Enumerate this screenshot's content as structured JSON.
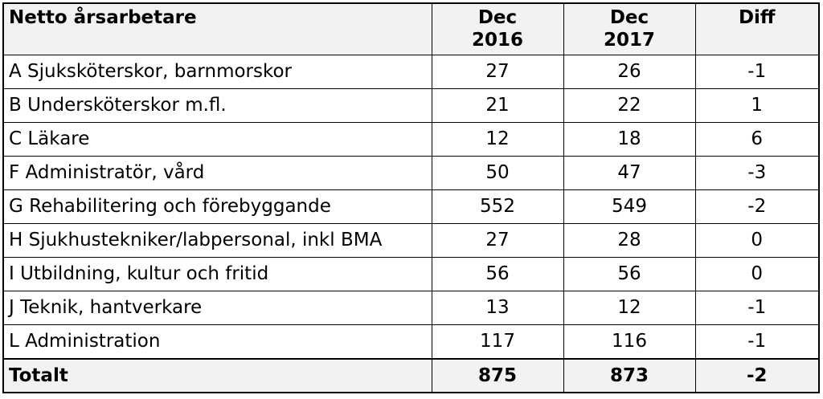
{
  "table": {
    "header": {
      "label": "Netto årsarbetare",
      "col1_line1": "Dec",
      "col1_line2": "2016",
      "col2_line1": "Dec",
      "col2_line2": "2017",
      "col3": "Diff"
    },
    "rows": [
      {
        "label": "A Sjuksköterskor, barnmorskor",
        "dec2016": "27",
        "dec2017": "26",
        "diff": "-1"
      },
      {
        "label": "B Undersköterskor m.fl.",
        "dec2016": "21",
        "dec2017": "22",
        "diff": "1"
      },
      {
        "label": "C Läkare",
        "dec2016": "12",
        "dec2017": "18",
        "diff": "6"
      },
      {
        "label": "F Administratör, vård",
        "dec2016": "50",
        "dec2017": "47",
        "diff": "-3"
      },
      {
        "label": "G Rehabilitering och förebyggande",
        "dec2016": "552",
        "dec2017": "549",
        "diff": "-2"
      },
      {
        "label": "H Sjukhustekniker/labpersonal, inkl BMA",
        "dec2016": "27",
        "dec2017": "28",
        "diff": "0"
      },
      {
        "label": "I Utbildning, kultur och fritid",
        "dec2016": "56",
        "dec2017": "56",
        "diff": "0"
      },
      {
        "label": "J Teknik, hantverkare",
        "dec2016": "13",
        "dec2017": "12",
        "diff": "-1"
      },
      {
        "label": "L Administration",
        "dec2016": "117",
        "dec2017": "116",
        "diff": "-1"
      }
    ],
    "total": {
      "label": "Totalt",
      "dec2016": "875",
      "dec2017": "873",
      "diff": "-2"
    }
  },
  "colors": {
    "header_bg": "#f2f2f2",
    "border": "#000000",
    "background": "#ffffff"
  }
}
